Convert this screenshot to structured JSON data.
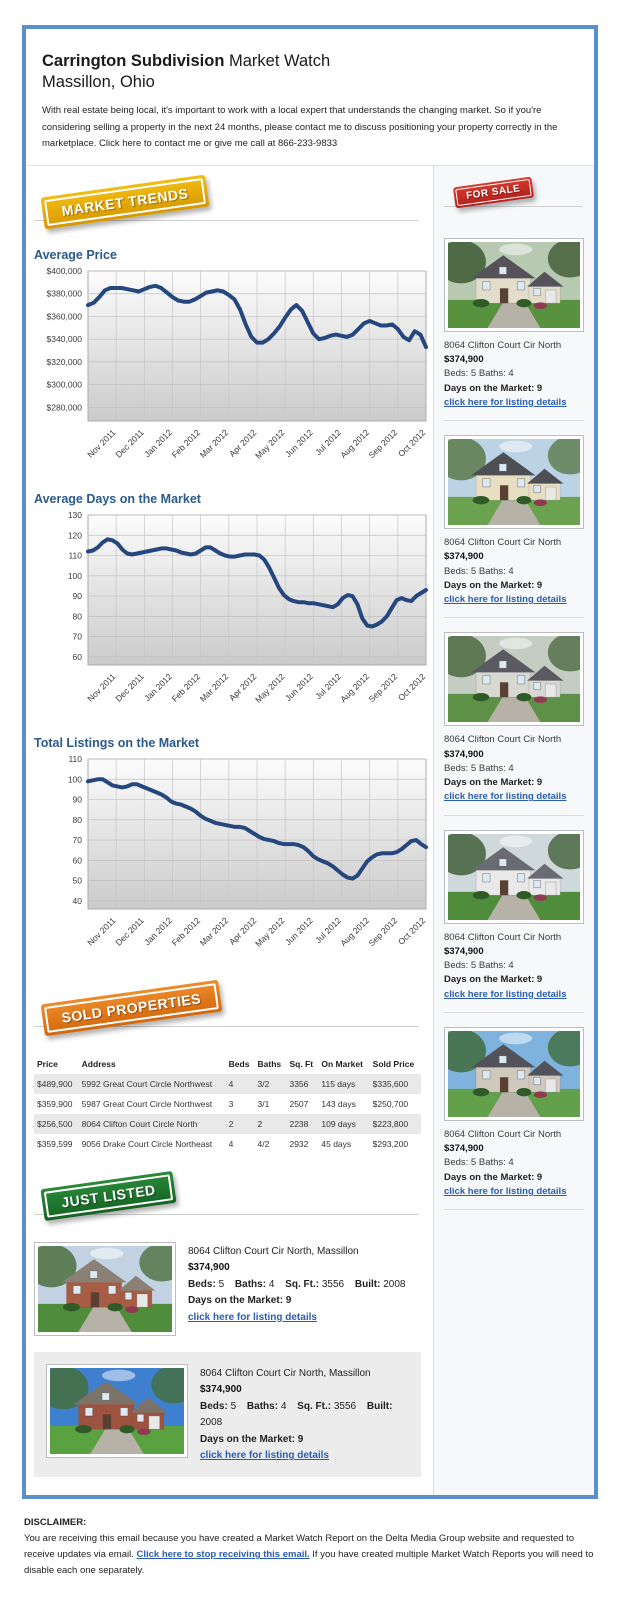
{
  "page": {
    "frame_border": "#5b91c8",
    "sidebar_bg": "#f7f8f9"
  },
  "header": {
    "title_bold": "Carrington Subdivision",
    "title_rest": " Market Watch",
    "subtitle": "Massillon, Ohio",
    "intro": "With real estate being local, it's important to work with a local expert that understands the changing market. So if you're considering selling a property in the next 24 months, please contact me to discuss positioning your property correctly in the marketplace. Click here to contact me or give me call at 866-233-9833"
  },
  "badges": {
    "market_trends": {
      "label": "MARKET TRENDS",
      "color_top": "#f3bd13",
      "color_bottom": "#d79700"
    },
    "for_sale": {
      "label": "FOR SALE",
      "color_top": "#d63a30",
      "color_bottom": "#b31f1a"
    },
    "sold_properties": {
      "label": "SOLD PROPERTIES",
      "color_top": "#ef8b2a",
      "color_bottom": "#d2680e"
    },
    "just_listed": {
      "label": "JUST LISTED",
      "color_top": "#2a8a3a",
      "color_bottom": "#156322"
    }
  },
  "chart_data": [
    {
      "type": "line",
      "title": "Average Price",
      "line_color": "#26477e",
      "x_labels": [
        "Nov 2011",
        "Dec 2011",
        "Jan 2012",
        "Feb 2012",
        "Mar 2012",
        "Apr 2012",
        "May 2012",
        "Jun 2012",
        "Jul 2012",
        "Aug 2012",
        "Sep 2012",
        "Oct 2012"
      ],
      "ylim": [
        268000,
        400000
      ],
      "yticks": [
        280000,
        300000,
        320000,
        340000,
        360000,
        380000,
        400000
      ],
      "ytick_labels": [
        "$280,000",
        "$300,000",
        "$320,000",
        "$340,000",
        "$360,000",
        "$380,000",
        "$400,000"
      ],
      "values": [
        370000,
        372000,
        377000,
        383000,
        385000,
        385000,
        385000,
        384000,
        383000,
        382000,
        384000,
        386000,
        387000,
        385000,
        381000,
        377000,
        374000,
        373000,
        373000,
        375000,
        378000,
        381000,
        382000,
        383000,
        382000,
        379000,
        375000,
        366000,
        353000,
        342000,
        337000,
        337000,
        340000,
        345000,
        351000,
        359000,
        366000,
        370000,
        365000,
        355000,
        345000,
        340000,
        341000,
        343000,
        344000,
        343000,
        342000,
        344000,
        349000,
        354000,
        356000,
        354000,
        352000,
        352000,
        353000,
        349000,
        342000,
        339000,
        347000,
        344000,
        333000
      ]
    },
    {
      "type": "line",
      "title": "Average Days on the Market",
      "line_color": "#26477e",
      "x_labels": [
        "Nov 2011",
        "Dec 2011",
        "Jan 2012",
        "Feb 2012",
        "Mar 2012",
        "Apr 2012",
        "May 2012",
        "Jun 2012",
        "Jul 2012",
        "Aug 2012",
        "Sep 2012",
        "Oct 2012"
      ],
      "ylim": [
        56,
        130
      ],
      "yticks": [
        60,
        70,
        80,
        90,
        100,
        110,
        120,
        130
      ],
      "ytick_labels": [
        "60",
        "70",
        "80",
        "90",
        "100",
        "110",
        "120",
        "130"
      ],
      "values": [
        112,
        112.5,
        114,
        116.5,
        118,
        117.5,
        116,
        113,
        111,
        110.5,
        111,
        111.5,
        112,
        112.5,
        113,
        113.5,
        113.5,
        113,
        112.5,
        111.5,
        111,
        110.5,
        111,
        112.5,
        114,
        114,
        112.5,
        111,
        110,
        109.5,
        109.5,
        110,
        110.5,
        110.5,
        110.5,
        110,
        108,
        104,
        99,
        94,
        90.5,
        88.5,
        87.5,
        87,
        87,
        86.5,
        86.5,
        86,
        85.5,
        85,
        84.5,
        86,
        89,
        90.5,
        90,
        86,
        79,
        75.5,
        75,
        76,
        77.5,
        80,
        84,
        88,
        89,
        88,
        87.5,
        90,
        91.5,
        93
      ]
    },
    {
      "type": "line",
      "title": "Total Listings on the Market",
      "line_color": "#26477e",
      "x_labels": [
        "Nov 2011",
        "Dec 2011",
        "Jan 2012",
        "Feb 2012",
        "Mar 2012",
        "Apr 2012",
        "May 2012",
        "Jun 2012",
        "Jul 2012",
        "Aug 2012",
        "Sep 2012",
        "Oct 2012"
      ],
      "ylim": [
        36,
        110
      ],
      "yticks": [
        40,
        50,
        60,
        70,
        80,
        90,
        100,
        110
      ],
      "ytick_labels": [
        "40",
        "50",
        "60",
        "70",
        "80",
        "90",
        "100",
        "110"
      ],
      "values": [
        99,
        99.5,
        100,
        100,
        98.5,
        97,
        96.5,
        96,
        96.5,
        97.5,
        97.5,
        96.5,
        95.5,
        94.5,
        93.5,
        92.5,
        91,
        89,
        88,
        87.5,
        86.5,
        85.5,
        84,
        82,
        80.5,
        79.5,
        78.5,
        78,
        77.5,
        77,
        76.5,
        76.5,
        76,
        74.5,
        73,
        71.5,
        70.5,
        70,
        69.5,
        68.5,
        68,
        68,
        68,
        67.5,
        66.5,
        64.5,
        62,
        60.5,
        59.5,
        58.5,
        57,
        55,
        53,
        51.5,
        51,
        52.5,
        56,
        59.5,
        61.5,
        63,
        63.5,
        63.5,
        63.5,
        64,
        65.5,
        67.5,
        69.5,
        70,
        68,
        66.5
      ]
    }
  ],
  "labels": {
    "beds": "Beds:",
    "baths": "Baths:",
    "sqft": "Sq. Ft.:",
    "built": "Built:",
    "days": "Days on the Market:",
    "details_link": "click here for listing details"
  },
  "for_sale_listings": [
    {
      "address": "8064 Clifton Court Cir North",
      "price": "$374,900",
      "beds": "5",
      "baths": "4",
      "days": "9",
      "photo": {
        "sky": "#b7c9b0",
        "tree": "#3d5a33",
        "body": "#e3decc",
        "roof": "#55525a",
        "grass": "#58923f"
      }
    },
    {
      "address": "8064 Clifton Court Cir North",
      "price": "$374,900",
      "beds": "5",
      "baths": "4",
      "days": "9",
      "photo": {
        "sky": "#bcd3e6",
        "tree": "#5a7a4a",
        "body": "#e8dfc2",
        "roof": "#4e4e55",
        "grass": "#6aa24f"
      }
    },
    {
      "address": "8064 Clifton Court Cir North",
      "price": "$374,900",
      "beds": "5",
      "baths": "4",
      "days": "9",
      "photo": {
        "sky": "#c5cdc3",
        "tree": "#4e6a42",
        "body": "#d8d8d2",
        "roof": "#5a5a60",
        "grass": "#5d9147"
      }
    },
    {
      "address": "8064 Clifton Court Cir North",
      "price": "$374,900",
      "beds": "5",
      "baths": "4",
      "days": "9",
      "photo": {
        "sky": "#cfd8da",
        "tree": "#41603a",
        "body": "#e9e9ea",
        "roof": "#6a6a72",
        "grass": "#4f8c3c"
      }
    },
    {
      "address": "8064 Clifton Court Cir North",
      "price": "$374,900",
      "beds": "5",
      "baths": "4",
      "days": "9",
      "photo": {
        "sky": "#7fb2dd",
        "tree": "#3f6b3c",
        "body": "#cfc9bd",
        "roof": "#52525a",
        "grass": "#63a04b"
      }
    }
  ],
  "sold_table": {
    "headers": [
      "Price",
      "Address",
      "Beds",
      "Baths",
      "Sq. Ft",
      "On Market",
      "Sold Price"
    ],
    "rows": [
      [
        "$489,900",
        "5992 Great Court Circle Northwest",
        "4",
        "3/2",
        "3356",
        "115 days",
        "$335,600"
      ],
      [
        "$359,900",
        "5987 Great Court Circle Northwest",
        "3",
        "3/1",
        "2507",
        "143 days",
        "$250,700"
      ],
      [
        "$256,500",
        "8064 Clifton Court Circle North",
        "2",
        "2",
        "2238",
        "109 days",
        "$223,800"
      ],
      [
        "$359,599",
        "9056 Drake Court Circle Northeast",
        "4",
        "4/2",
        "2932",
        "45 days",
        "$293,200"
      ]
    ]
  },
  "just_listed": [
    {
      "address": "8064 Clifton Court Cir North, Massillon",
      "price": "$374,900",
      "beds": "5",
      "baths": "4",
      "sqft": "3556",
      "built": "2008",
      "days": "9",
      "photo": {
        "sky": "#c3d2e2",
        "tree": "#4c7040",
        "body": "#a85c44",
        "roof": "#8a8076",
        "grass": "#4f8c3c"
      }
    },
    {
      "address": "8064 Clifton Court Cir North, Massillon",
      "price": "$374,900",
      "beds": "5",
      "baths": "4",
      "sqft": "3556",
      "built": "2008",
      "days": "9",
      "photo": {
        "sky": "#3f7fd0",
        "tree": "#456f3b",
        "body": "#9e5340",
        "roof": "#7b7268",
        "grass": "#5aa13f"
      }
    }
  ],
  "disclaimer": {
    "heading": "DISCLAIMER:",
    "before": "You are receiving this email because you have created a Market Watch Report on the Delta Media Group website and requested to receive updates via email. ",
    "link": "Click here to stop receiving this email.",
    "after": " If you have created multiple Market Watch Reports you will need to disable each one separately."
  }
}
